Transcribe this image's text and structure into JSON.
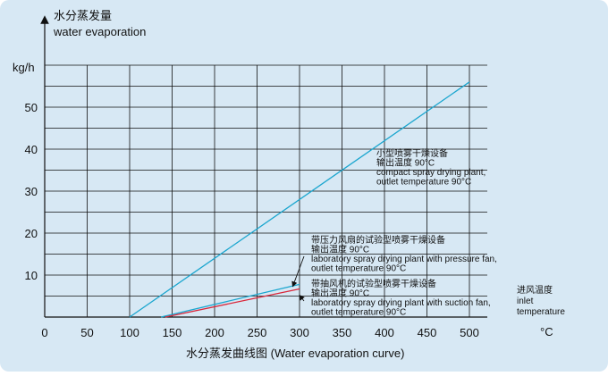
{
  "chart_data": {
    "type": "line",
    "title": "",
    "ylabel_cn": "水分蒸发量",
    "ylabel_en": "water evaporation",
    "yunit": "kg/h",
    "xlabel_cn": "进风温度",
    "xlabel_en": "inlet",
    "xlabel_en2": "temperature",
    "xunit": "°C",
    "caption": "水分蒸发曲线图 (Water evaporation curve)",
    "xlim": [
      0,
      500
    ],
    "ylim": [
      0,
      60
    ],
    "xticks": [
      0,
      50,
      100,
      150,
      200,
      250,
      300,
      350,
      400,
      450,
      500
    ],
    "yticks": [
      10,
      20,
      30,
      40,
      50
    ],
    "grid": true,
    "series": [
      {
        "name": "小型喷雾干燥设备 / compact spray drying plant",
        "color": "#1ba6cf",
        "points": [
          [
            100,
            0
          ],
          [
            500,
            56
          ]
        ],
        "label_lines": [
          "小型喷雾干燥设备",
          "输出温度 90°C",
          "compact  spray drying plant,",
          "outlet temperature 90°C"
        ]
      },
      {
        "name": "带压力风扇的试验型喷雾干燥设备 / laboratory spray drying plant with pressure fan",
        "color": "#1ba6cf",
        "points": [
          [
            137,
            0
          ],
          [
            300,
            7.8
          ]
        ],
        "label_lines": [
          "带压力风扇的试验型喷雾干燥设备",
          "输出温度 90°C",
          "laboratory spray drying plant with pressure fan,",
          "outlet temperature 90°C"
        ]
      },
      {
        "name": "带抽风机的试验型喷雾干燥设备 / laboratory spray drying plant with suction fan",
        "color": "#d9263a",
        "points": [
          [
            142,
            0
          ],
          [
            300,
            6.7
          ]
        ],
        "label_lines": [
          "带抽风机的试验型喷雾干燥设备",
          "输出温度 90°C",
          "laboratory spray drying plant with suction fan,",
          "outlet temperature 90°C"
        ]
      }
    ]
  }
}
